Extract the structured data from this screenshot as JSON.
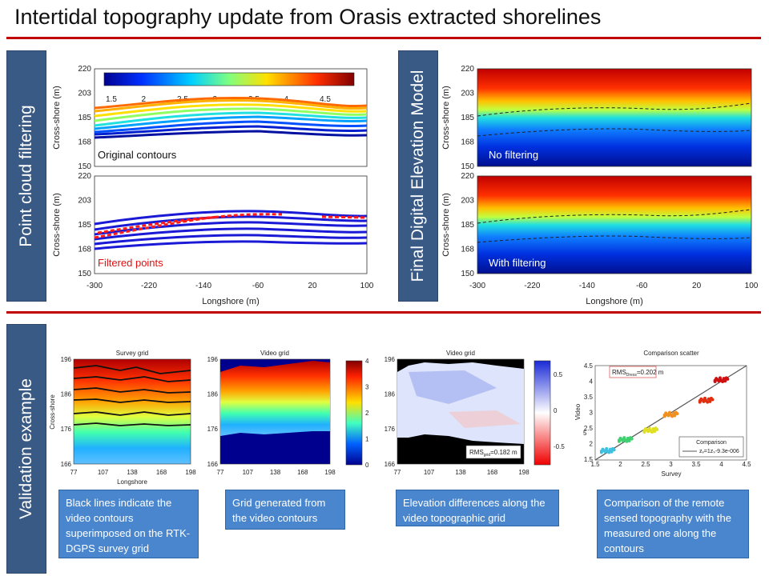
{
  "title": "Intertidal topography update from Orasis extracted shorelines",
  "sections": {
    "point_cloud": "Point cloud filtering",
    "final_dem": "Final Digital Elevation Model",
    "validation": "Validation example"
  },
  "top_plots": {
    "ylabel": "Cross-shore (m)",
    "xlabel": "Longshore (m)",
    "x_ticks": [
      "-300",
      "-220",
      "-140",
      "-60",
      "20",
      "100"
    ],
    "y_ticks": [
      "220",
      "203",
      "185",
      "168",
      "150"
    ],
    "colorbar_ticks": [
      "1.5",
      "2",
      "2.5",
      "3",
      "3.5",
      "4",
      "4.5"
    ],
    "original_label": "Original contours",
    "filtered_label": "Filtered points",
    "no_filter_label": "No filtering",
    "with_filter_label": "With filtering"
  },
  "validation": {
    "survey": {
      "title": "Survey grid",
      "xlabel": "Longshore",
      "ylabel": "Cross-shore"
    },
    "video": {
      "title": "Video grid",
      "cbar_ticks": [
        "4",
        "3",
        "2",
        "1",
        "0"
      ]
    },
    "diff": {
      "title": "Video grid",
      "rms": "RMS",
      "rms_sub": "grid",
      "rms_val": "=0.182 m",
      "cbar_ticks": [
        "0.5",
        "0",
        "-0.5"
      ]
    },
    "scatter": {
      "title": "Comparison scatter",
      "xlabel": "Survey",
      "ylabel": "Video",
      "rms": "RMS",
      "rms_sub": "Dress",
      "rms_val": "=0.202 m",
      "legend_title": "Comparison",
      "legend_line": "zᵥ=1zₛ-9.3e-006",
      "x_ticks": [
        "1.5",
        "2",
        "2.5",
        "3",
        "3.5",
        "4",
        "4.5"
      ],
      "y_ticks": [
        "4.5",
        "4",
        "3.5",
        "3",
        "2.5",
        "2",
        "1.5"
      ],
      "y_extra": "5"
    },
    "x_ticks": [
      "77",
      "107",
      "138",
      "168",
      "198"
    ],
    "y_ticks": [
      "196",
      "186",
      "176",
      "166"
    ]
  },
  "captions": [
    "Black lines indicate the video contours superimposed on the RTK-DGPS survey grid",
    "Grid generated from the video contours",
    "Elevation differences along the video topographic grid",
    "Comparison of the remote sensed topography with the measured one along the contours"
  ],
  "chart_data": [
    {
      "type": "scatter",
      "title": "Comparison scatter",
      "xlabel": "Survey",
      "ylabel": "Video",
      "xlim": [
        1.5,
        4.5
      ],
      "ylim": [
        1.5,
        4.5
      ],
      "series": [
        {
          "name": "Comparison",
          "x": [
            1.5,
            4.5
          ],
          "y": [
            1.5,
            4.5
          ]
        }
      ],
      "clusters": [
        {
          "x": 1.75,
          "y": 1.8,
          "color": "#40c0e0"
        },
        {
          "x": 2.1,
          "y": 2.15,
          "color": "#40d070"
        },
        {
          "x": 2.6,
          "y": 2.45,
          "color": "#e0e020"
        },
        {
          "x": 3.0,
          "y": 2.95,
          "color": "#f09020"
        },
        {
          "x": 3.7,
          "y": 3.4,
          "color": "#e03010"
        },
        {
          "x": 4.0,
          "y": 4.05,
          "color": "#d01010"
        }
      ]
    }
  ]
}
